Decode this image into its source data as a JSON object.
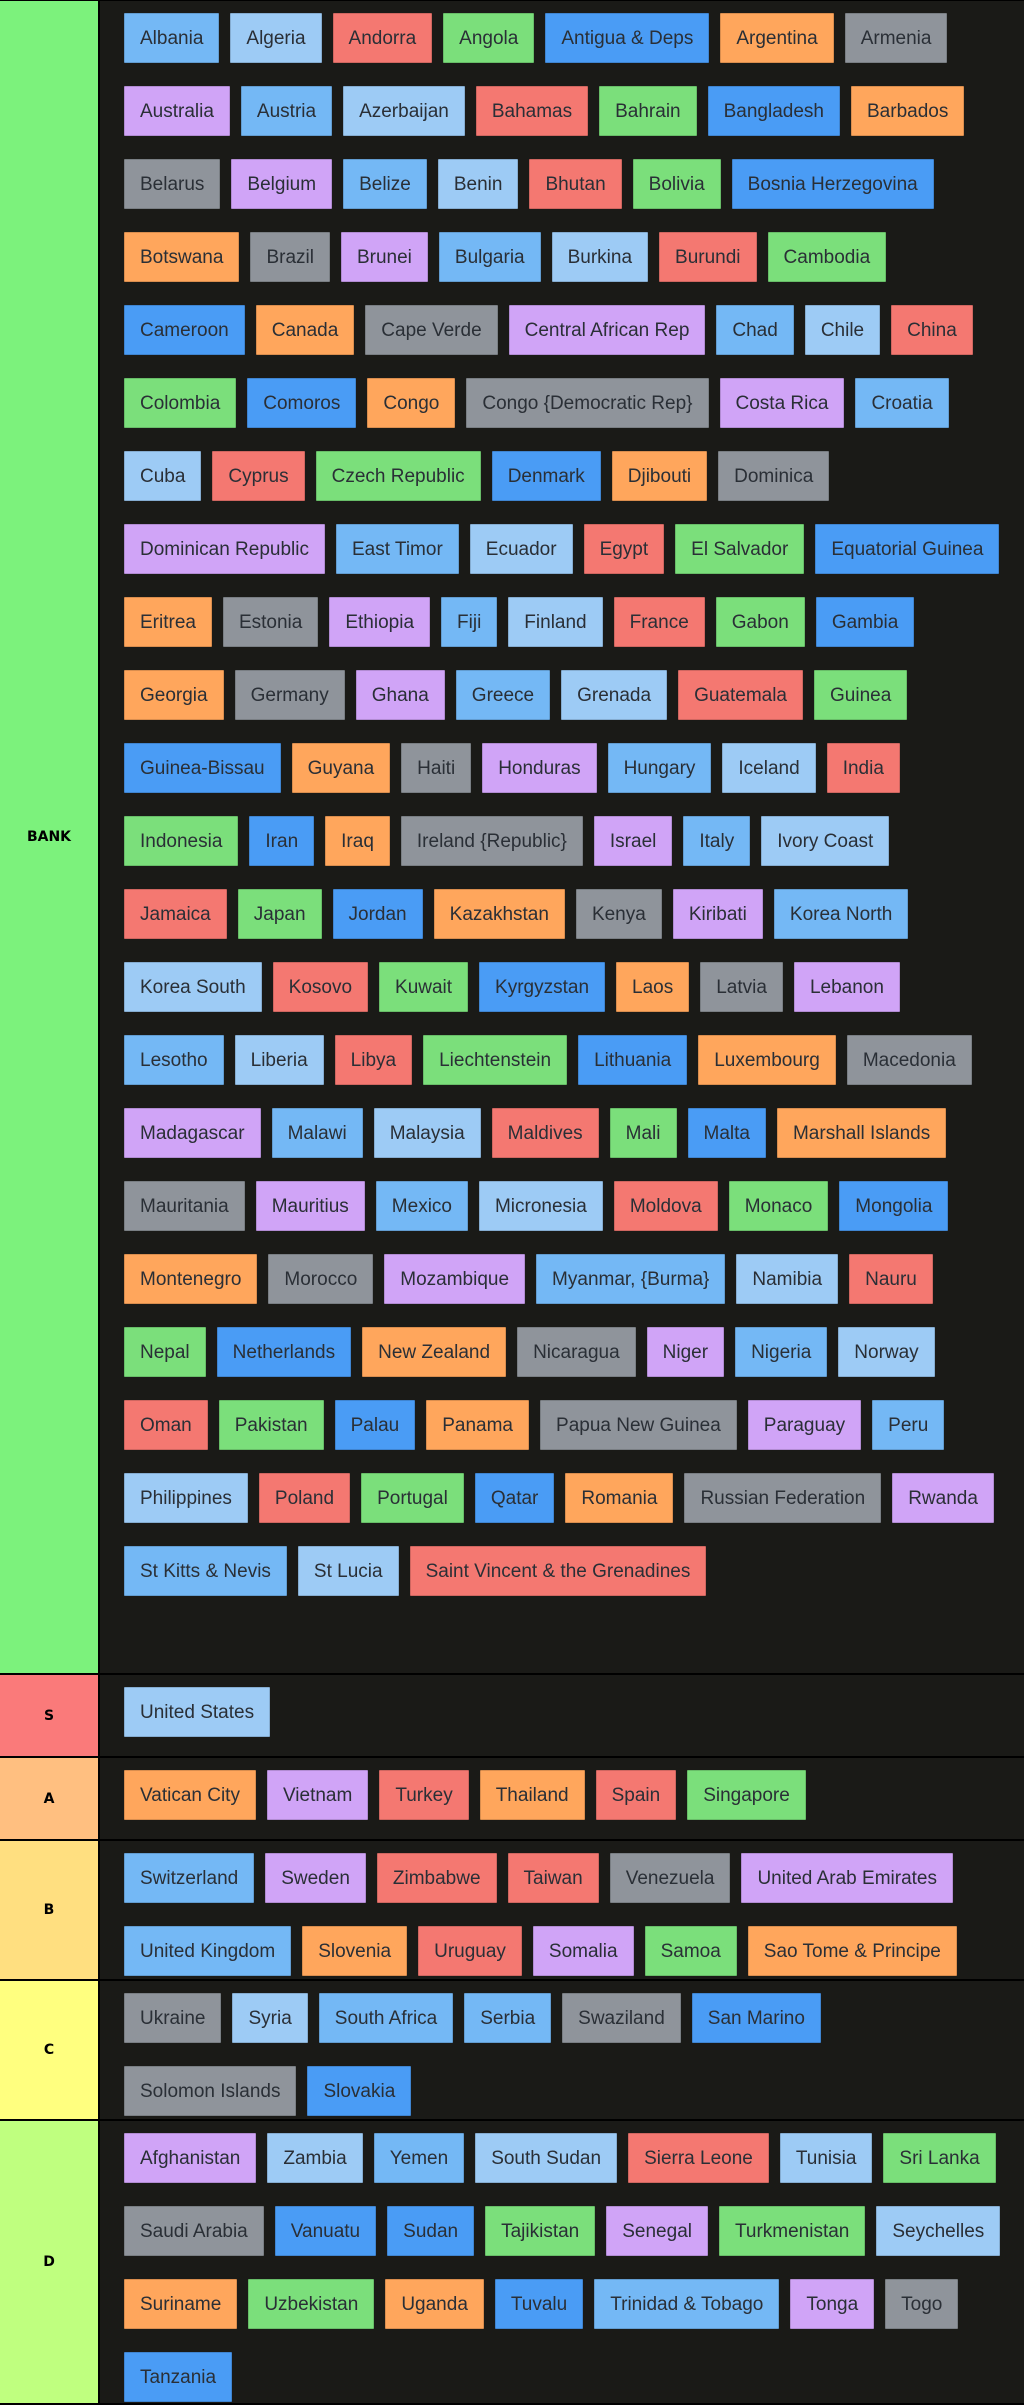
{
  "colors": {
    "blue": "#4a9cf5",
    "lightblue": "#9dcbf5",
    "red": "#f47871",
    "green": "#7bdf7b",
    "orange": "#ffa65c",
    "gray": "#8f949b",
    "purple": "#d0a4f7",
    "skyblue": "#74b8f5"
  },
  "tiers": [
    {
      "label": "BANK",
      "color": "#7cf27c",
      "height": 1672,
      "items": [
        {
          "name": "Albania",
          "color": "skyblue"
        },
        {
          "name": "Algeria",
          "color": "lightblue"
        },
        {
          "name": "Andorra",
          "color": "red"
        },
        {
          "name": "Angola",
          "color": "green"
        },
        {
          "name": "Antigua & Deps",
          "color": "blue"
        },
        {
          "name": "Argentina",
          "color": "orange"
        },
        {
          "name": "Armenia",
          "color": "gray"
        },
        {
          "name": "Australia",
          "color": "purple"
        },
        {
          "name": "Austria",
          "color": "skyblue"
        },
        {
          "name": "Azerbaijan",
          "color": "lightblue"
        },
        {
          "name": "Bahamas",
          "color": "red"
        },
        {
          "name": "Bahrain",
          "color": "green"
        },
        {
          "name": "Bangladesh",
          "color": "blue"
        },
        {
          "name": "Barbados",
          "color": "orange"
        },
        {
          "name": "Belarus",
          "color": "gray"
        },
        {
          "name": "Belgium",
          "color": "purple"
        },
        {
          "name": "Belize",
          "color": "skyblue"
        },
        {
          "name": "Benin",
          "color": "lightblue"
        },
        {
          "name": "Bhutan",
          "color": "red"
        },
        {
          "name": "Bolivia",
          "color": "green"
        },
        {
          "name": "Bosnia Herzegovina",
          "color": "blue"
        },
        {
          "name": "Botswana",
          "color": "orange"
        },
        {
          "name": "Brazil",
          "color": "gray"
        },
        {
          "name": "Brunei",
          "color": "purple"
        },
        {
          "name": "Bulgaria",
          "color": "skyblue"
        },
        {
          "name": "Burkina",
          "color": "lightblue"
        },
        {
          "name": "Burundi",
          "color": "red"
        },
        {
          "name": "Cambodia",
          "color": "green"
        },
        {
          "name": "Cameroon",
          "color": "blue"
        },
        {
          "name": "Canada",
          "color": "orange"
        },
        {
          "name": "Cape Verde",
          "color": "gray"
        },
        {
          "name": "Central African Rep",
          "color": "purple"
        },
        {
          "name": "Chad",
          "color": "skyblue"
        },
        {
          "name": "Chile",
          "color": "lightblue"
        },
        {
          "name": "China",
          "color": "red"
        },
        {
          "name": "Colombia",
          "color": "green"
        },
        {
          "name": "Comoros",
          "color": "blue"
        },
        {
          "name": "Congo",
          "color": "orange"
        },
        {
          "name": "Congo {Democratic Rep}",
          "color": "gray"
        },
        {
          "name": "Costa Rica",
          "color": "purple"
        },
        {
          "name": "Croatia",
          "color": "skyblue"
        },
        {
          "name": "Cuba",
          "color": "lightblue"
        },
        {
          "name": "Cyprus",
          "color": "red"
        },
        {
          "name": "Czech Republic",
          "color": "green"
        },
        {
          "name": "Denmark",
          "color": "blue"
        },
        {
          "name": "Djibouti",
          "color": "orange"
        },
        {
          "name": "Dominica",
          "color": "gray"
        },
        {
          "name": "Dominican Republic",
          "color": "purple"
        },
        {
          "name": "East Timor",
          "color": "skyblue"
        },
        {
          "name": "Ecuador",
          "color": "lightblue"
        },
        {
          "name": "Egypt",
          "color": "red"
        },
        {
          "name": "El Salvador",
          "color": "green"
        },
        {
          "name": "Equatorial Guinea",
          "color": "blue"
        },
        {
          "name": "Eritrea",
          "color": "orange"
        },
        {
          "name": "Estonia",
          "color": "gray"
        },
        {
          "name": "Ethiopia",
          "color": "purple"
        },
        {
          "name": "Fiji",
          "color": "skyblue"
        },
        {
          "name": "Finland",
          "color": "lightblue"
        },
        {
          "name": "France",
          "color": "red"
        },
        {
          "name": "Gabon",
          "color": "green"
        },
        {
          "name": "Gambia",
          "color": "blue"
        },
        {
          "name": "Georgia",
          "color": "orange"
        },
        {
          "name": "Germany",
          "color": "gray"
        },
        {
          "name": "Ghana",
          "color": "purple"
        },
        {
          "name": "Greece",
          "color": "skyblue"
        },
        {
          "name": "Grenada",
          "color": "lightblue"
        },
        {
          "name": "Guatemala",
          "color": "red"
        },
        {
          "name": "Guinea",
          "color": "green"
        },
        {
          "name": "Guinea-Bissau",
          "color": "blue"
        },
        {
          "name": "Guyana",
          "color": "orange"
        },
        {
          "name": "Haiti",
          "color": "gray"
        },
        {
          "name": "Honduras",
          "color": "purple"
        },
        {
          "name": "Hungary",
          "color": "skyblue"
        },
        {
          "name": "Iceland",
          "color": "lightblue"
        },
        {
          "name": "India",
          "color": "red"
        },
        {
          "name": "Indonesia",
          "color": "green"
        },
        {
          "name": "Iran",
          "color": "blue"
        },
        {
          "name": "Iraq",
          "color": "orange"
        },
        {
          "name": "Ireland {Republic}",
          "color": "gray"
        },
        {
          "name": "Israel",
          "color": "purple"
        },
        {
          "name": "Italy",
          "color": "skyblue"
        },
        {
          "name": "Ivory Coast",
          "color": "lightblue"
        },
        {
          "name": "Jamaica",
          "color": "red"
        },
        {
          "name": "Japan",
          "color": "green"
        },
        {
          "name": "Jordan",
          "color": "blue"
        },
        {
          "name": "Kazakhstan",
          "color": "orange"
        },
        {
          "name": "Kenya",
          "color": "gray"
        },
        {
          "name": "Kiribati",
          "color": "purple"
        },
        {
          "name": "Korea North",
          "color": "skyblue"
        },
        {
          "name": "Korea South",
          "color": "lightblue"
        },
        {
          "name": "Kosovo",
          "color": "red"
        },
        {
          "name": "Kuwait",
          "color": "green"
        },
        {
          "name": "Kyrgyzstan",
          "color": "blue"
        },
        {
          "name": "Laos",
          "color": "orange"
        },
        {
          "name": "Latvia",
          "color": "gray"
        },
        {
          "name": "Lebanon",
          "color": "purple"
        },
        {
          "name": "Lesotho",
          "color": "skyblue"
        },
        {
          "name": "Liberia",
          "color": "lightblue"
        },
        {
          "name": "Libya",
          "color": "red"
        },
        {
          "name": "Liechtenstein",
          "color": "green"
        },
        {
          "name": "Lithuania",
          "color": "blue"
        },
        {
          "name": "Luxembourg",
          "color": "orange"
        },
        {
          "name": "Macedonia",
          "color": "gray"
        },
        {
          "name": "Madagascar",
          "color": "purple"
        },
        {
          "name": "Malawi",
          "color": "skyblue"
        },
        {
          "name": "Malaysia",
          "color": "lightblue"
        },
        {
          "name": "Maldives",
          "color": "red"
        },
        {
          "name": "Mali",
          "color": "green"
        },
        {
          "name": "Malta",
          "color": "blue"
        },
        {
          "name": "Marshall Islands",
          "color": "orange"
        },
        {
          "name": "Mauritania",
          "color": "gray"
        },
        {
          "name": "Mauritius",
          "color": "purple"
        },
        {
          "name": "Mexico",
          "color": "skyblue"
        },
        {
          "name": "Micronesia",
          "color": "lightblue"
        },
        {
          "name": "Moldova",
          "color": "red"
        },
        {
          "name": "Monaco",
          "color": "green"
        },
        {
          "name": "Mongolia",
          "color": "blue"
        },
        {
          "name": "Montenegro",
          "color": "orange"
        },
        {
          "name": "Morocco",
          "color": "gray"
        },
        {
          "name": "Mozambique",
          "color": "purple"
        },
        {
          "name": "Myanmar, {Burma}",
          "color": "skyblue"
        },
        {
          "name": "Namibia",
          "color": "lightblue"
        },
        {
          "name": "Nauru",
          "color": "red"
        },
        {
          "name": "Nepal",
          "color": "green"
        },
        {
          "name": "Netherlands",
          "color": "blue"
        },
        {
          "name": "New Zealand",
          "color": "orange"
        },
        {
          "name": "Nicaragua",
          "color": "gray"
        },
        {
          "name": "Niger",
          "color": "purple"
        },
        {
          "name": "Nigeria",
          "color": "skyblue"
        },
        {
          "name": "Norway",
          "color": "lightblue"
        },
        {
          "name": "Oman",
          "color": "red"
        },
        {
          "name": "Pakistan",
          "color": "green"
        },
        {
          "name": "Palau",
          "color": "blue"
        },
        {
          "name": "Panama",
          "color": "orange"
        },
        {
          "name": "Papua New Guinea",
          "color": "gray"
        },
        {
          "name": "Paraguay",
          "color": "purple"
        },
        {
          "name": "Peru",
          "color": "skyblue"
        },
        {
          "name": "Philippines",
          "color": "lightblue"
        },
        {
          "name": "Poland",
          "color": "red"
        },
        {
          "name": "Portugal",
          "color": "green"
        },
        {
          "name": "Qatar",
          "color": "blue"
        },
        {
          "name": "Romania",
          "color": "orange"
        },
        {
          "name": "Russian Federation",
          "color": "gray"
        },
        {
          "name": "Rwanda",
          "color": "purple"
        },
        {
          "name": "St Kitts & Nevis",
          "color": "skyblue"
        },
        {
          "name": "St Lucia",
          "color": "lightblue"
        },
        {
          "name": "Saint Vincent & the Grenadines",
          "color": "red"
        }
      ]
    },
    {
      "label": "S",
      "color": "#fa7a7a",
      "height": 81,
      "items": [
        {
          "name": "United States",
          "color": "lightblue"
        }
      ]
    },
    {
      "label": "A",
      "color": "#ffbf80",
      "height": 81,
      "items": [
        {
          "name": "Vatican City",
          "color": "orange"
        },
        {
          "name": "Vietnam",
          "color": "purple"
        },
        {
          "name": "Turkey",
          "color": "red"
        },
        {
          "name": "Thailand",
          "color": "orange"
        },
        {
          "name": "Spain",
          "color": "red"
        },
        {
          "name": "Singapore",
          "color": "green"
        }
      ]
    },
    {
      "label": "B",
      "color": "#ffdf80",
      "height": 138,
      "items": [
        {
          "name": "Switzerland",
          "color": "skyblue"
        },
        {
          "name": "Sweden",
          "color": "purple"
        },
        {
          "name": "Zimbabwe",
          "color": "red"
        },
        {
          "name": "Taiwan",
          "color": "red"
        },
        {
          "name": "Venezuela",
          "color": "gray"
        },
        {
          "name": "United Arab Emirates",
          "color": "purple"
        },
        {
          "name": "United Kingdom",
          "color": "skyblue"
        },
        {
          "name": "Slovenia",
          "color": "orange"
        },
        {
          "name": "Uruguay",
          "color": "red"
        },
        {
          "name": "Somalia",
          "color": "purple"
        },
        {
          "name": "Samoa",
          "color": "green"
        },
        {
          "name": "Sao Tome & Principe",
          "color": "orange"
        }
      ]
    },
    {
      "label": "C",
      "color": "#ffff7f",
      "height": 138,
      "items": [
        {
          "name": "Ukraine",
          "color": "gray"
        },
        {
          "name": "Syria",
          "color": "lightblue"
        },
        {
          "name": "South Africa",
          "color": "skyblue"
        },
        {
          "name": "Serbia",
          "color": "skyblue"
        },
        {
          "name": "Swaziland",
          "color": "gray"
        },
        {
          "name": "San Marino",
          "color": "blue"
        },
        {
          "name": "Solomon Islands",
          "color": "gray"
        },
        {
          "name": "Slovakia",
          "color": "blue"
        }
      ]
    },
    {
      "label": "D",
      "color": "#bfff7f",
      "height": 282,
      "items": [
        {
          "name": "Afghanistan",
          "color": "purple"
        },
        {
          "name": "Zambia",
          "color": "lightblue"
        },
        {
          "name": "Yemen",
          "color": "skyblue"
        },
        {
          "name": "South Sudan",
          "color": "lightblue"
        },
        {
          "name": "Sierra Leone",
          "color": "red"
        },
        {
          "name": "Tunisia",
          "color": "lightblue"
        },
        {
          "name": "Sri Lanka",
          "color": "green"
        },
        {
          "name": "Saudi Arabia",
          "color": "gray"
        },
        {
          "name": "Vanuatu",
          "color": "blue"
        },
        {
          "name": "Sudan",
          "color": "blue"
        },
        {
          "name": "Tajikistan",
          "color": "green"
        },
        {
          "name": "Senegal",
          "color": "purple"
        },
        {
          "name": "Turkmenistan",
          "color": "green"
        },
        {
          "name": "Seychelles",
          "color": "lightblue"
        },
        {
          "name": "Suriname",
          "color": "orange"
        },
        {
          "name": "Uzbekistan",
          "color": "green"
        },
        {
          "name": "Uganda",
          "color": "orange"
        },
        {
          "name": "Tuvalu",
          "color": "blue"
        },
        {
          "name": "Trinidad & Tobago",
          "color": "skyblue"
        },
        {
          "name": "Tonga",
          "color": "purple"
        },
        {
          "name": "Togo",
          "color": "gray"
        },
        {
          "name": "Tanzania",
          "color": "blue"
        }
      ]
    }
  ]
}
